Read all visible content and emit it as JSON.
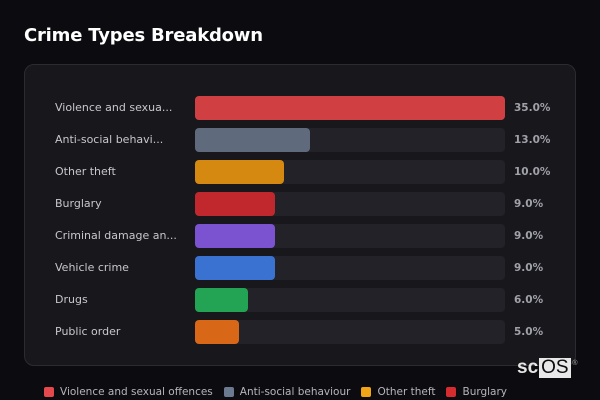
{
  "title": "Crime Types Breakdown",
  "rows": [
    {
      "label": "Violence and sexua...",
      "value": "35.0%",
      "pct": 35.0,
      "color": "#d04043"
    },
    {
      "label": "Anti-social behavi...",
      "value": "13.0%",
      "pct": 13.0,
      "color": "#5f6b7c"
    },
    {
      "label": "Other theft",
      "value": "10.0%",
      "pct": 10.0,
      "color": "#d68910"
    },
    {
      "label": "Burglary",
      "value": "9.0%",
      "pct": 9.0,
      "color": "#c0282d"
    },
    {
      "label": "Criminal damage an...",
      "value": "9.0%",
      "pct": 9.0,
      "color": "#7b52cf"
    },
    {
      "label": "Vehicle crime",
      "value": "9.0%",
      "pct": 9.0,
      "color": "#3a72d2"
    },
    {
      "label": "Drugs",
      "value": "6.0%",
      "pct": 6.0,
      "color": "#23a455"
    },
    {
      "label": "Public order",
      "value": "5.0%",
      "pct": 5.0,
      "color": "#d86818"
    }
  ],
  "legend": [
    {
      "label": "Violence and sexual offences",
      "color": "#e5484d"
    },
    {
      "label": "Anti-social behaviour",
      "color": "#6b7a90"
    },
    {
      "label": "Other theft",
      "color": "#f2a516"
    },
    {
      "label": "Burglary",
      "color": "#d62b2f"
    }
  ],
  "logo": {
    "sc": "sc",
    "os": "OS",
    "reg": "®"
  },
  "chart_data": {
    "type": "bar",
    "orientation": "horizontal",
    "title": "Crime Types Breakdown",
    "categories": [
      "Violence and sexual offences",
      "Anti-social behaviour",
      "Other theft",
      "Burglary",
      "Criminal damage and arson",
      "Vehicle crime",
      "Drugs",
      "Public order"
    ],
    "values": [
      35.0,
      13.0,
      10.0,
      9.0,
      9.0,
      9.0,
      6.0,
      5.0
    ],
    "value_labels": [
      "35.0%",
      "13.0%",
      "10.0%",
      "9.0%",
      "9.0%",
      "9.0%",
      "6.0%",
      "5.0%"
    ],
    "xlabel": "",
    "ylabel": "",
    "xlim": [
      0,
      35
    ],
    "grid": false,
    "legend_position": "bottom",
    "legend_entries": [
      "Violence and sexual offences",
      "Anti-social behaviour",
      "Other theft",
      "Burglary"
    ]
  }
}
